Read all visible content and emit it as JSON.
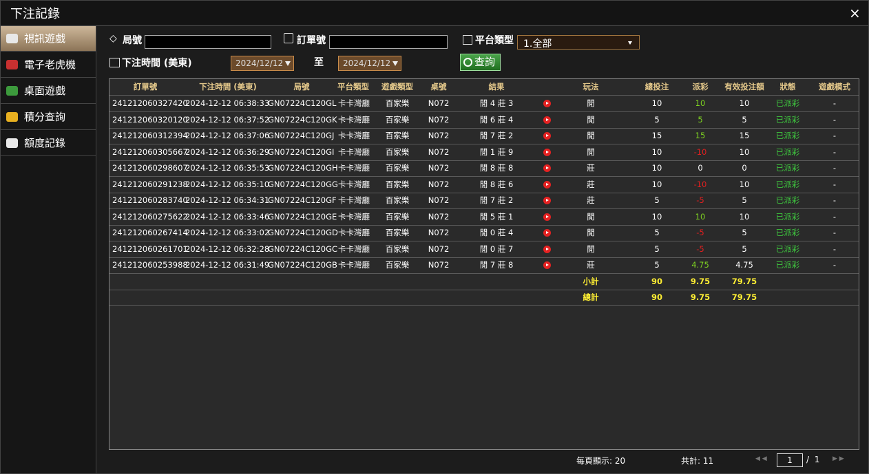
{
  "header": {
    "title": "下注記錄",
    "close": "×"
  },
  "sidebar": [
    "視訊遊戲",
    "電子老虎機",
    "桌面遊戲",
    "積分查詢",
    "額度記錄"
  ],
  "filters": {
    "round_label": "局號",
    "order_label": "訂單號",
    "platform_label": "平台類型",
    "platform_value": "1.全部",
    "time_label": "下注時間 (美東)",
    "date_from": "2024/12/12",
    "to_label": "至",
    "date_to": "2024/12/12",
    "search_button": "查詢"
  },
  "table": {
    "columns": [
      "訂單號",
      "下注時間 (美東)",
      "局號",
      "平台類型",
      "遊戲類型",
      "桌號",
      "結果",
      null,
      "玩法",
      "總投注",
      "派彩",
      "有效投注額",
      "狀態",
      "遊戲模式"
    ],
    "rows": [
      [
        "241212060327420",
        "2024-12-12 06:38:33",
        "GN07224C120GL",
        "卡卡灣廳",
        "百家樂",
        "N072",
        "閒 4 莊 3",
        null,
        "閒",
        10,
        10,
        10,
        "已派彩",
        "-"
      ],
      [
        "241212060320120",
        "2024-12-12 06:37:52",
        "GN07224C120GK",
        "卡卡灣廳",
        "百家樂",
        "N072",
        "閒 6 莊 4",
        null,
        "閒",
        5,
        5,
        5,
        "已派彩",
        "-"
      ],
      [
        "241212060312394",
        "2024-12-12 06:37:06",
        "GN07224C120GJ",
        "卡卡灣廳",
        "百家樂",
        "N072",
        "閒 7 莊 2",
        null,
        "閒",
        15,
        15,
        15,
        "已派彩",
        "-"
      ],
      [
        "241212060305667",
        "2024-12-12 06:36:29",
        "GN07224C120GI",
        "卡卡灣廳",
        "百家樂",
        "N072",
        "閒 1 莊 9",
        null,
        "閒",
        10,
        -10,
        10,
        "已派彩",
        "-"
      ],
      [
        "241212060298607",
        "2024-12-12 06:35:53",
        "GN07224C120GH",
        "卡卡灣廳",
        "百家樂",
        "N072",
        "閒 8 莊 8",
        null,
        "莊",
        10,
        0,
        0,
        "已派彩",
        "-"
      ],
      [
        "241212060291238",
        "2024-12-12 06:35:10",
        "GN07224C120GG",
        "卡卡灣廳",
        "百家樂",
        "N072",
        "閒 8 莊 6",
        null,
        "莊",
        10,
        -10,
        10,
        "已派彩",
        "-"
      ],
      [
        "241212060283740",
        "2024-12-12 06:34:31",
        "GN07224C120GF",
        "卡卡灣廳",
        "百家樂",
        "N072",
        "閒 7 莊 2",
        null,
        "莊",
        5,
        -5,
        5,
        "已派彩",
        "-"
      ],
      [
        "241212060275622",
        "2024-12-12 06:33:46",
        "GN07224C120GE",
        "卡卡灣廳",
        "百家樂",
        "N072",
        "閒 5 莊 1",
        null,
        "閒",
        10,
        10,
        10,
        "已派彩",
        "-"
      ],
      [
        "241212060267414",
        "2024-12-12 06:33:02",
        "GN07224C120GD",
        "卡卡灣廳",
        "百家樂",
        "N072",
        "閒 0 莊 4",
        null,
        "閒",
        5,
        -5,
        5,
        "已派彩",
        "-"
      ],
      [
        "241212060261701",
        "2024-12-12 06:32:28",
        "GN07224C120GC",
        "卡卡灣廳",
        "百家樂",
        "N072",
        "閒 0 莊 7",
        null,
        "閒",
        5,
        -5,
        5,
        "已派彩",
        "-"
      ],
      [
        "241212060253988",
        "2024-12-12 06:31:49",
        "GN07224C120GB",
        "卡卡灣廳",
        "百家樂",
        "N072",
        "閒 7 莊 8",
        null,
        "莊",
        5,
        4.75,
        4.75,
        "已派彩",
        "-"
      ]
    ],
    "subtotal": {
      "label": "小計",
      "bet": 90,
      "payout": 9.75,
      "valid": 79.75
    },
    "total": {
      "label": "總計",
      "bet": 90,
      "payout": 9.75,
      "valid": 79.75
    }
  },
  "footer": {
    "per_page_label": "每頁顯示:",
    "per_page": 20,
    "total_label": "共計:",
    "total": 11,
    "page": 1,
    "page_sep": "/",
    "pages": 1
  }
}
